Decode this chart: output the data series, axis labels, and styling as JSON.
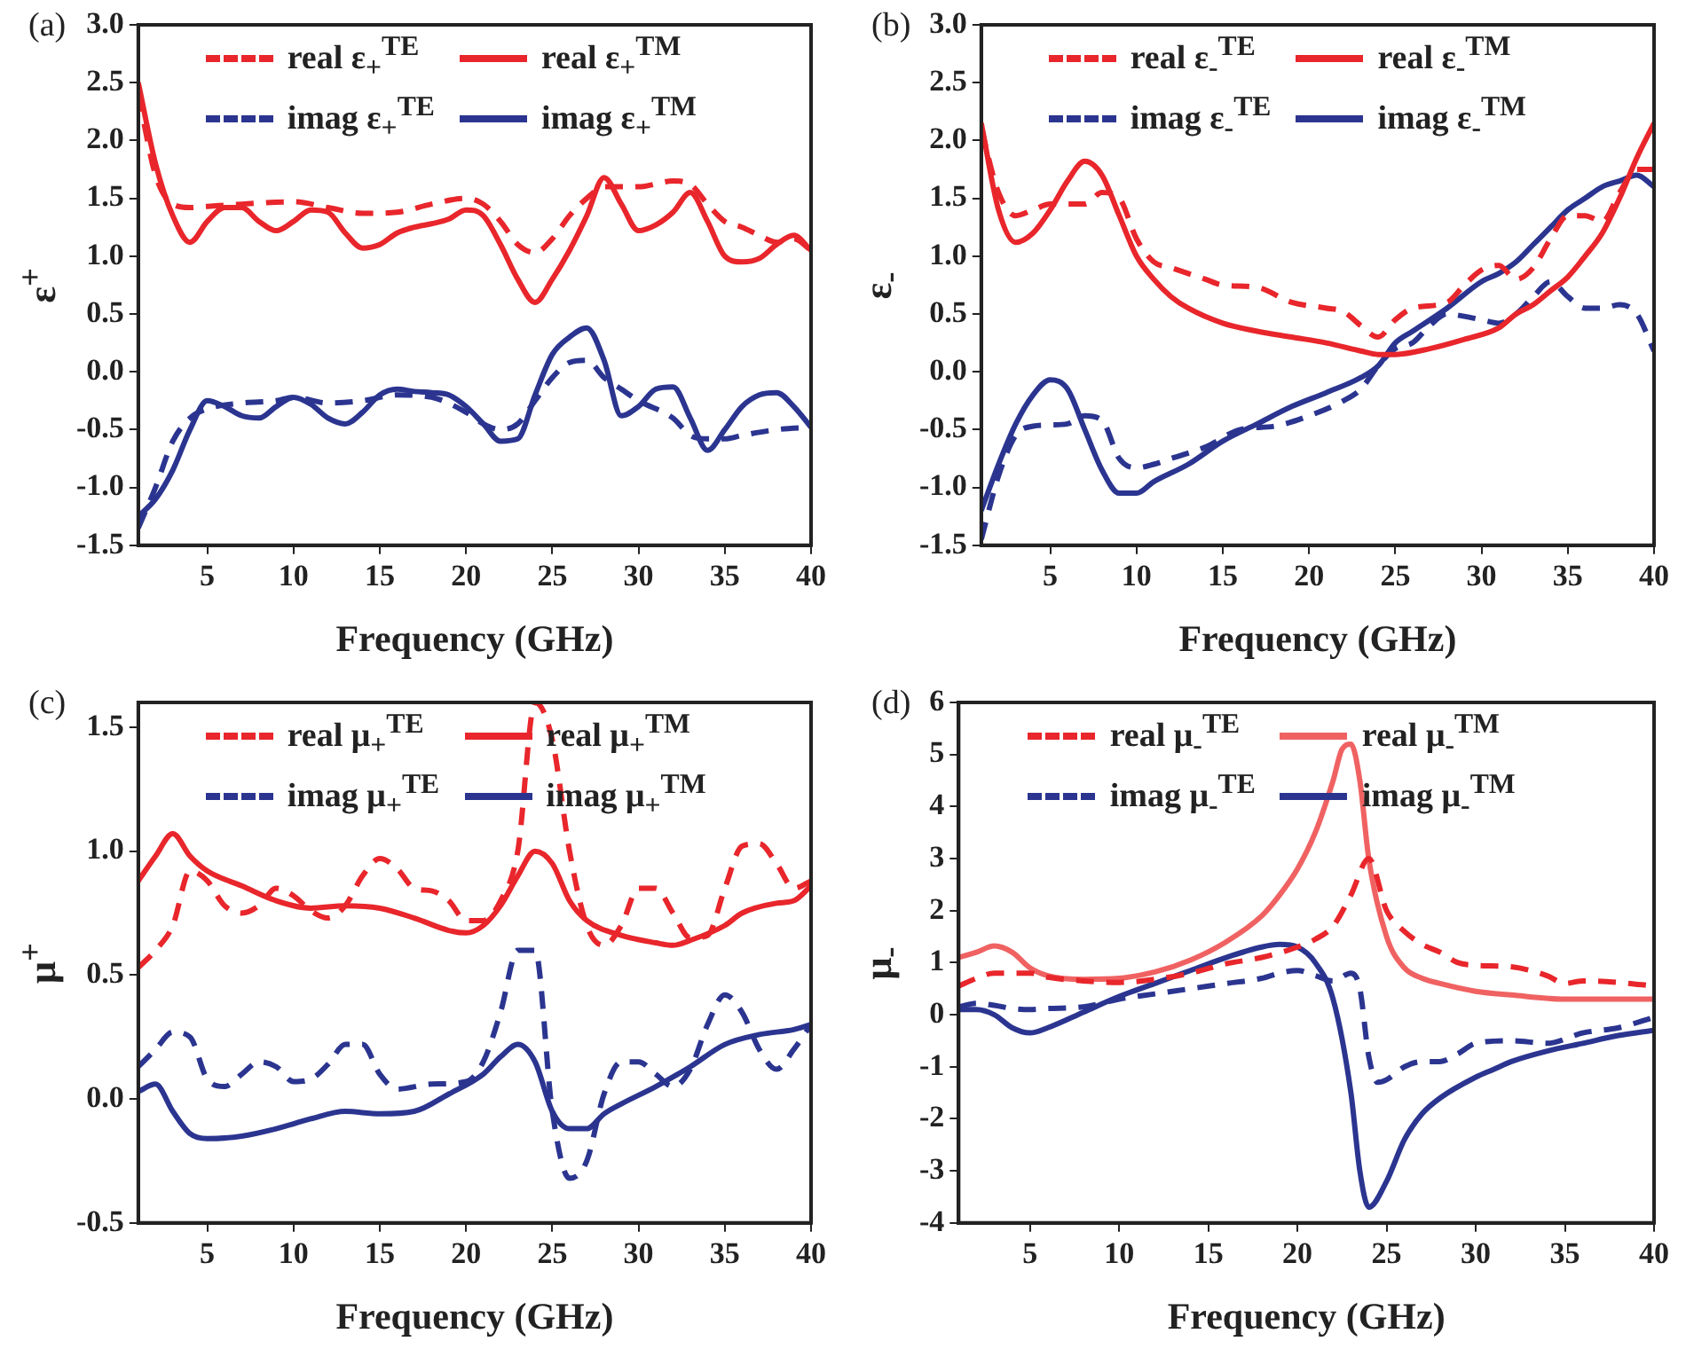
{
  "chart_data": [
    {
      "type": "line",
      "title": "(a)",
      "xlabel": "Frequency (GHz)",
      "ylabel": "ε$^{+}$",
      "xlim": [
        1,
        40
      ],
      "xticks": [
        5,
        10,
        15,
        20,
        25,
        30,
        35,
        40
      ],
      "ylim": [
        -1.5,
        3.0
      ],
      "yticks": [
        {
          "value": -1.5,
          "label": "-1.5"
        },
        {
          "value": -1,
          "label": "-1.0"
        },
        {
          "value": -0.5,
          "label": "-0.5"
        },
        {
          "value": 0,
          "label": "0.0"
        },
        {
          "value": 0.5,
          "label": "0.5"
        },
        {
          "value": 1,
          "label": "1.0"
        },
        {
          "value": 1.5,
          "label": "1.5"
        },
        {
          "value": 2,
          "label": "2.0"
        },
        {
          "value": 2.5,
          "label": "2.5"
        },
        {
          "value": 3,
          "label": "3.0"
        }
      ],
      "grid": false,
      "legend": "top",
      "marker": "none",
      "series": [
        {
          "name": "real ε$_{+}$$^{TE}$",
          "color": "#e8262b",
          "line_style": "dashed",
          "x": [
            1,
            2,
            3,
            4,
            5,
            7,
            10,
            12,
            14,
            16,
            18,
            20,
            21,
            22,
            23,
            24,
            25,
            26,
            27,
            28,
            30,
            32,
            33,
            34,
            35,
            36,
            37,
            38,
            39,
            40
          ],
          "values": [
            2.4,
            1.7,
            1.45,
            1.42,
            1.43,
            1.45,
            1.47,
            1.42,
            1.37,
            1.38,
            1.45,
            1.5,
            1.45,
            1.3,
            1.1,
            1.03,
            1.15,
            1.35,
            1.5,
            1.6,
            1.6,
            1.65,
            1.62,
            1.45,
            1.3,
            1.25,
            1.18,
            1.12,
            1.15,
            1.05
          ]
        },
        {
          "name": "real ε$_{+}$$^{TM}$",
          "color": "#e8262b",
          "line_style": "solid",
          "x": [
            1,
            2,
            3,
            4,
            5,
            6,
            7,
            8,
            9,
            10,
            11,
            12,
            13,
            14,
            15,
            16,
            17,
            18,
            19,
            20,
            21,
            22,
            23,
            24,
            25,
            26,
            27,
            28,
            29,
            30,
            31,
            32,
            33,
            34,
            35,
            36,
            37,
            38,
            39,
            40
          ],
          "values": [
            2.5,
            1.8,
            1.35,
            1.12,
            1.3,
            1.42,
            1.42,
            1.3,
            1.22,
            1.3,
            1.4,
            1.38,
            1.2,
            1.07,
            1.1,
            1.2,
            1.25,
            1.28,
            1.32,
            1.4,
            1.35,
            1.1,
            0.8,
            0.6,
            0.8,
            1.05,
            1.35,
            1.68,
            1.45,
            1.22,
            1.27,
            1.38,
            1.55,
            1.3,
            1.0,
            0.95,
            0.98,
            1.1,
            1.18,
            1.05
          ]
        },
        {
          "name": "imag ε$_{+}$$^{TE}$",
          "color": "#2b3590",
          "line_style": "dashed",
          "x": [
            1,
            2,
            3,
            4,
            5,
            7,
            9,
            10,
            12,
            14,
            16,
            18,
            20,
            21,
            22,
            23,
            24,
            25,
            26,
            27,
            28,
            29,
            30,
            32,
            33,
            34,
            35,
            36,
            38,
            40
          ],
          "values": [
            -1.35,
            -1.0,
            -0.6,
            -0.4,
            -0.32,
            -0.27,
            -0.25,
            -0.22,
            -0.27,
            -0.25,
            -0.2,
            -0.22,
            -0.35,
            -0.45,
            -0.5,
            -0.45,
            -0.25,
            -0.05,
            0.08,
            0.1,
            -0.05,
            -0.15,
            -0.25,
            -0.4,
            -0.55,
            -0.58,
            -0.58,
            -0.55,
            -0.5,
            -0.48
          ]
        },
        {
          "name": "imag ε$_{+}$$^{TM}$",
          "color": "#2b3590",
          "line_style": "solid",
          "x": [
            1,
            2,
            3,
            4,
            5,
            6,
            7,
            8,
            9,
            10,
            11,
            12,
            13,
            14,
            15,
            16,
            17,
            18,
            19,
            20,
            21,
            22,
            23,
            24,
            25,
            26,
            27,
            28,
            29,
            30,
            31,
            32,
            33,
            34,
            35,
            36,
            37,
            38,
            39,
            40
          ],
          "values": [
            -1.25,
            -1.1,
            -0.85,
            -0.5,
            -0.25,
            -0.3,
            -0.38,
            -0.4,
            -0.3,
            -0.22,
            -0.28,
            -0.4,
            -0.45,
            -0.35,
            -0.2,
            -0.15,
            -0.17,
            -0.18,
            -0.2,
            -0.3,
            -0.45,
            -0.6,
            -0.58,
            -0.2,
            0.15,
            0.3,
            0.38,
            0.1,
            -0.38,
            -0.3,
            -0.15,
            -0.13,
            -0.4,
            -0.68,
            -0.5,
            -0.3,
            -0.2,
            -0.18,
            -0.3,
            -0.48
          ]
        }
      ]
    },
    {
      "type": "line",
      "title": "(b)",
      "xlabel": "Frequency (GHz)",
      "ylabel": "ε$_{-}$",
      "xlim": [
        1,
        40
      ],
      "xticks": [
        5,
        10,
        15,
        20,
        25,
        30,
        35,
        40
      ],
      "ylim": [
        -1.5,
        3.0
      ],
      "yticks": [
        {
          "value": -1.5,
          "label": "-1.5"
        },
        {
          "value": -1,
          "label": "-1.0"
        },
        {
          "value": -0.5,
          "label": "-0.5"
        },
        {
          "value": 0,
          "label": "0.0"
        },
        {
          "value": 0.5,
          "label": "0.5"
        },
        {
          "value": 1,
          "label": "1.0"
        },
        {
          "value": 1.5,
          "label": "1.5"
        },
        {
          "value": 2,
          "label": "2.0"
        },
        {
          "value": 2.5,
          "label": "2.5"
        },
        {
          "value": 3,
          "label": "3.0"
        }
      ],
      "grid": false,
      "legend": "top",
      "marker": "none",
      "series": [
        {
          "name": "real ε$_{-}$$^{TE}$",
          "color": "#e8262b",
          "line_style": "dashed",
          "x": [
            1,
            2,
            3,
            4,
            5,
            6,
            7,
            8,
            9,
            10,
            11,
            12,
            14,
            15,
            17,
            19,
            21,
            22,
            23,
            24,
            25,
            26,
            28,
            29,
            30,
            31,
            32,
            33,
            34,
            35,
            36,
            37,
            38,
            39,
            40
          ],
          "values": [
            2.1,
            1.55,
            1.35,
            1.4,
            1.45,
            1.45,
            1.45,
            1.55,
            1.5,
            1.15,
            0.95,
            0.9,
            0.8,
            0.75,
            0.73,
            0.6,
            0.55,
            0.52,
            0.4,
            0.3,
            0.45,
            0.55,
            0.6,
            0.75,
            0.88,
            0.92,
            0.8,
            0.9,
            1.15,
            1.35,
            1.35,
            1.3,
            1.55,
            1.75,
            1.75
          ]
        },
        {
          "name": "real ε$_{-}$$^{TM}$",
          "color": "#e8262b",
          "line_style": "solid",
          "x": [
            1,
            2,
            3,
            4,
            5,
            6,
            7,
            8,
            9,
            10,
            11,
            12,
            13,
            15,
            17,
            19,
            21,
            23,
            24,
            25,
            27,
            29,
            31,
            32,
            33,
            34,
            35,
            36,
            37,
            38,
            39,
            40
          ],
          "values": [
            2.15,
            1.4,
            1.12,
            1.2,
            1.4,
            1.65,
            1.82,
            1.7,
            1.35,
            1.0,
            0.8,
            0.65,
            0.55,
            0.42,
            0.35,
            0.3,
            0.25,
            0.18,
            0.15,
            0.15,
            0.2,
            0.28,
            0.38,
            0.5,
            0.58,
            0.7,
            0.82,
            1.0,
            1.2,
            1.5,
            1.85,
            2.15
          ]
        },
        {
          "name": "imag ε$_{-}$$^{TE}$",
          "color": "#2b3590",
          "line_style": "dashed",
          "x": [
            1,
            2,
            3,
            4,
            5,
            6,
            7,
            8,
            9,
            10,
            11,
            12,
            14,
            16,
            18,
            20,
            22,
            23,
            24,
            25,
            26,
            27,
            28,
            29,
            30,
            31,
            32,
            33,
            34,
            35,
            36,
            37,
            38,
            39,
            40
          ],
          "values": [
            -1.45,
            -0.9,
            -0.55,
            -0.47,
            -0.46,
            -0.45,
            -0.38,
            -0.42,
            -0.75,
            -0.83,
            -0.8,
            -0.75,
            -0.65,
            -0.5,
            -0.47,
            -0.38,
            -0.25,
            -0.15,
            0.05,
            0.2,
            0.25,
            0.4,
            0.5,
            0.48,
            0.45,
            0.42,
            0.5,
            0.65,
            0.78,
            0.65,
            0.55,
            0.55,
            0.58,
            0.5,
            0.18
          ]
        },
        {
          "name": "imag ε$_{-}$$^{TM}$",
          "color": "#2b3590",
          "line_style": "solid",
          "x": [
            1,
            2,
            3,
            4,
            5,
            6,
            7,
            8,
            9,
            10,
            11,
            13,
            15,
            17,
            19,
            21,
            23,
            24,
            25,
            26,
            28,
            30,
            31,
            32,
            33,
            34,
            35,
            36,
            37,
            38,
            39,
            40
          ],
          "values": [
            -1.2,
            -0.8,
            -0.45,
            -0.2,
            -0.07,
            -0.15,
            -0.5,
            -0.85,
            -1.05,
            -1.05,
            -0.95,
            -0.8,
            -0.6,
            -0.45,
            -0.3,
            -0.18,
            -0.05,
            0.05,
            0.25,
            0.35,
            0.55,
            0.78,
            0.85,
            0.95,
            1.1,
            1.25,
            1.4,
            1.5,
            1.6,
            1.65,
            1.7,
            1.6
          ]
        }
      ]
    },
    {
      "type": "line",
      "title": "(c)",
      "xlabel": "Frequency (GHz)",
      "ylabel": "μ$^{+}$",
      "xlim": [
        1,
        40
      ],
      "xticks": [
        5,
        10,
        15,
        20,
        25,
        30,
        35,
        40
      ],
      "ylim": [
        -0.5,
        1.6
      ],
      "yticks": [
        {
          "value": -0.5,
          "label": "-0.5"
        },
        {
          "value": 0,
          "label": "0.0"
        },
        {
          "value": 0.5,
          "label": "0.5"
        },
        {
          "value": 1,
          "label": "1.0"
        },
        {
          "value": 1.5,
          "label": "1.5"
        }
      ],
      "grid": false,
      "legend": "top",
      "marker": "none",
      "series": [
        {
          "name": "real μ$_{+}$$^{TE}$",
          "color": "#e8262b",
          "line_style": "dashed",
          "x": [
            1,
            2,
            3,
            4,
            5,
            6,
            7,
            8,
            9,
            10,
            11,
            12,
            13,
            14,
            15,
            16,
            17,
            18,
            19,
            20,
            21,
            22,
            23,
            24,
            25,
            26,
            27,
            28,
            29,
            30,
            31,
            32,
            33,
            34,
            35,
            36,
            37,
            38,
            39,
            40
          ],
          "values": [
            0.53,
            0.6,
            0.7,
            0.92,
            0.88,
            0.78,
            0.75,
            0.78,
            0.85,
            0.82,
            0.76,
            0.73,
            0.78,
            0.9,
            0.97,
            0.93,
            0.85,
            0.84,
            0.8,
            0.72,
            0.72,
            0.8,
            1.0,
            1.6,
            1.45,
            1.0,
            0.7,
            0.62,
            0.7,
            0.85,
            0.85,
            0.75,
            0.65,
            0.66,
            0.85,
            1.02,
            1.03,
            0.95,
            0.85,
            0.88
          ]
        },
        {
          "name": "real μ$_{+}$$^{TM}$",
          "color": "#e8262b",
          "line_style": "solid",
          "x": [
            1,
            2,
            3,
            4,
            5,
            7,
            9,
            11,
            13,
            15,
            17,
            19,
            20,
            21,
            22,
            23,
            24,
            25,
            26,
            27,
            29,
            31,
            32,
            33,
            35,
            36,
            38,
            39,
            40
          ],
          "values": [
            0.88,
            0.98,
            1.07,
            0.98,
            0.92,
            0.86,
            0.8,
            0.77,
            0.78,
            0.77,
            0.73,
            0.68,
            0.67,
            0.7,
            0.78,
            0.9,
            1.0,
            0.95,
            0.8,
            0.72,
            0.66,
            0.63,
            0.62,
            0.64,
            0.7,
            0.75,
            0.79,
            0.8,
            0.86
          ]
        },
        {
          "name": "imag μ$_{+}$$^{TE}$",
          "color": "#2b3590",
          "line_style": "dashed",
          "x": [
            1,
            2,
            3,
            4,
            5,
            6,
            7,
            8,
            9,
            10,
            11,
            12,
            13,
            14,
            15,
            16,
            18,
            20,
            21,
            22,
            23,
            24,
            25,
            26,
            27,
            28,
            29,
            30,
            31,
            32,
            33,
            34,
            35,
            36,
            37,
            38,
            39,
            40
          ],
          "values": [
            0.13,
            0.2,
            0.27,
            0.25,
            0.08,
            0.05,
            0.1,
            0.15,
            0.13,
            0.07,
            0.08,
            0.14,
            0.22,
            0.22,
            0.1,
            0.04,
            0.06,
            0.07,
            0.15,
            0.35,
            0.6,
            0.6,
            -0.05,
            -0.32,
            -0.25,
            0.02,
            0.15,
            0.15,
            0.1,
            0.05,
            0.12,
            0.3,
            0.42,
            0.35,
            0.2,
            0.12,
            0.2,
            0.3
          ]
        },
        {
          "name": "imag μ$_{+}$$^{TM}$",
          "color": "#2b3590",
          "line_style": "solid",
          "x": [
            1,
            2,
            3,
            4,
            5,
            7,
            9,
            11,
            13,
            15,
            17,
            19,
            21,
            22,
            23,
            24,
            25,
            26,
            27,
            28,
            29,
            31,
            33,
            35,
            37,
            39,
            40
          ],
          "values": [
            0.03,
            0.06,
            -0.05,
            -0.14,
            -0.16,
            -0.15,
            -0.12,
            -0.08,
            -0.05,
            -0.06,
            -0.05,
            0.02,
            0.1,
            0.17,
            0.22,
            0.15,
            -0.05,
            -0.12,
            -0.12,
            -0.06,
            -0.02,
            0.05,
            0.13,
            0.22,
            0.26,
            0.28,
            0.3
          ]
        }
      ]
    },
    {
      "type": "line",
      "title": "(d)",
      "xlabel": "Frequency (GHz)",
      "ylabel": "μ$_{-}$",
      "xlim": [
        1,
        40
      ],
      "xticks": [
        5,
        10,
        15,
        20,
        25,
        30,
        35,
        40
      ],
      "ylim": [
        -4,
        6
      ],
      "yticks": [
        -4,
        -3,
        -2,
        -1,
        0,
        1,
        2,
        3,
        4,
        5,
        6
      ],
      "grid": false,
      "legend": "top",
      "marker": "none",
      "series": [
        {
          "name": "real μ$_{-}$$^{TE}$",
          "color": "#e8262b",
          "line_style": "dashed",
          "x": [
            1,
            2,
            3,
            5,
            6,
            8,
            10,
            12,
            14,
            16,
            18,
            20,
            21,
            22,
            23,
            24,
            25,
            26,
            27,
            28,
            29,
            30,
            32,
            34,
            35,
            36,
            38,
            40
          ],
          "values": [
            0.55,
            0.7,
            0.8,
            0.8,
            0.72,
            0.65,
            0.62,
            0.68,
            0.8,
            0.98,
            1.1,
            1.3,
            1.45,
            1.7,
            2.3,
            3.0,
            2.0,
            1.6,
            1.35,
            1.2,
            1.0,
            0.95,
            0.92,
            0.75,
            0.6,
            0.65,
            0.62,
            0.55
          ]
        },
        {
          "name": "real μ$_{-}$$^{TM}$",
          "color": "#f06262",
          "line_style": "solid",
          "x": [
            1,
            2,
            3,
            4,
            5,
            6,
            8,
            10,
            12,
            14,
            16,
            18,
            19,
            20,
            21,
            22,
            22.5,
            23,
            23.5,
            24,
            25,
            26,
            27,
            28,
            30,
            32,
            35,
            38,
            40
          ],
          "values": [
            1.1,
            1.2,
            1.32,
            1.2,
            0.9,
            0.75,
            0.68,
            0.7,
            0.82,
            1.05,
            1.4,
            1.9,
            2.3,
            2.8,
            3.5,
            4.5,
            5.1,
            5.2,
            4.5,
            3.0,
            1.5,
            0.9,
            0.7,
            0.6,
            0.45,
            0.38,
            0.3,
            0.3,
            0.3
          ]
        },
        {
          "name": "imag μ$_{-}$$^{TE}$",
          "color": "#2b3590",
          "line_style": "dashed",
          "x": [
            1,
            2,
            3,
            4,
            5,
            6,
            8,
            10,
            12,
            14,
            16,
            18,
            19,
            20,
            21,
            22,
            23,
            23.5,
            24,
            24.5,
            25,
            26,
            27,
            28,
            29,
            30,
            32,
            34,
            36,
            38,
            40
          ],
          "values": [
            0.15,
            0.22,
            0.18,
            0.12,
            0.1,
            0.12,
            0.15,
            0.3,
            0.4,
            0.5,
            0.6,
            0.7,
            0.8,
            0.85,
            0.75,
            0.65,
            0.8,
            0.5,
            -0.8,
            -1.3,
            -1.25,
            -1.0,
            -0.9,
            -0.9,
            -0.75,
            -0.55,
            -0.5,
            -0.55,
            -0.35,
            -0.25,
            -0.05
          ]
        },
        {
          "name": "imag μ$_{-}$$^{TM}$",
          "color": "#2b3590",
          "line_style": "solid",
          "x": [
            1,
            2,
            3,
            4,
            5,
            6,
            8,
            10,
            12,
            14,
            16,
            18,
            19,
            20,
            21,
            22,
            23,
            23.5,
            24,
            25,
            26,
            27,
            28,
            30,
            31,
            32,
            34,
            36,
            38,
            40
          ],
          "values": [
            0.1,
            0.1,
            0.0,
            -0.25,
            -0.35,
            -0.25,
            0.05,
            0.35,
            0.6,
            0.85,
            1.1,
            1.3,
            1.35,
            1.3,
            1.0,
            0.3,
            -1.5,
            -3.0,
            -3.7,
            -3.2,
            -2.4,
            -1.9,
            -1.6,
            -1.2,
            -1.05,
            -0.9,
            -0.7,
            -0.55,
            -0.4,
            -0.3
          ]
        }
      ]
    }
  ]
}
